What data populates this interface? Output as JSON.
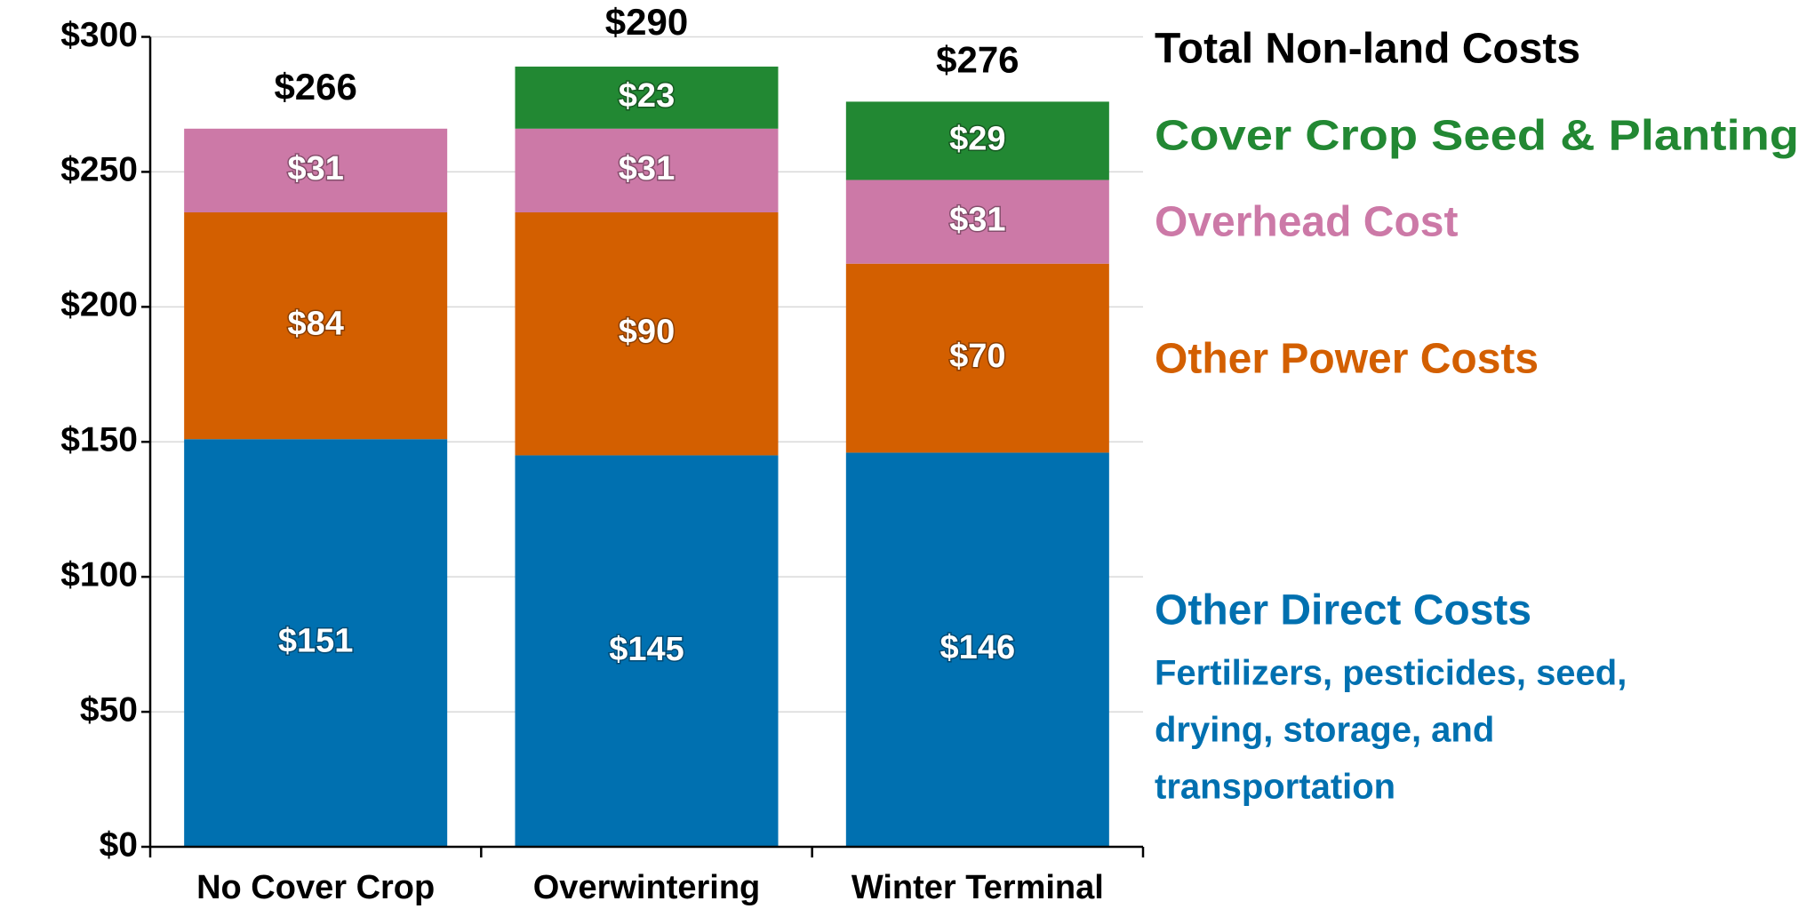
{
  "chart_data": {
    "type": "stacked_bar",
    "categories": [
      "No Cover Crop",
      "Overwintering",
      "Winter Terminal"
    ],
    "series": [
      {
        "name": "Other Direct Costs",
        "color": "#0070b0",
        "values": [
          151,
          145,
          146
        ],
        "value_labels": [
          "$151",
          "$145",
          "$146"
        ]
      },
      {
        "name": "Other Power Costs",
        "color": "#d35f00",
        "values": [
          84,
          90,
          70
        ],
        "value_labels": [
          "$84",
          "$90",
          "$70"
        ]
      },
      {
        "name": "Overhead Cost",
        "color": "#cc79a7",
        "values": [
          31,
          31,
          31
        ],
        "value_labels": [
          "$31",
          "$31",
          "$31"
        ]
      },
      {
        "name": "Cover Crop Seed & Planting",
        "color": "#228833",
        "values": [
          null,
          23,
          29
        ],
        "value_labels": [
          null,
          "$23",
          "$29"
        ]
      }
    ],
    "totals": [
      266,
      290,
      276
    ],
    "total_labels": [
      "$266",
      "$290",
      "$276"
    ],
    "totals_title": "Total Non-land Costs",
    "legend_note": [
      "Fertilizers, pesticides, seed,",
      "drying, storage, and",
      "transportation"
    ],
    "ylim": [
      0,
      300
    ],
    "yticks": [
      {
        "value": 0,
        "label": "$0"
      },
      {
        "value": 50,
        "label": "$50"
      },
      {
        "value": 100,
        "label": "$100"
      },
      {
        "value": 150,
        "label": "$150"
      },
      {
        "value": 200,
        "label": "$200"
      },
      {
        "value": 250,
        "label": "$250"
      },
      {
        "value": 300,
        "label": "$300"
      }
    ],
    "grid": true,
    "legend": "right"
  }
}
